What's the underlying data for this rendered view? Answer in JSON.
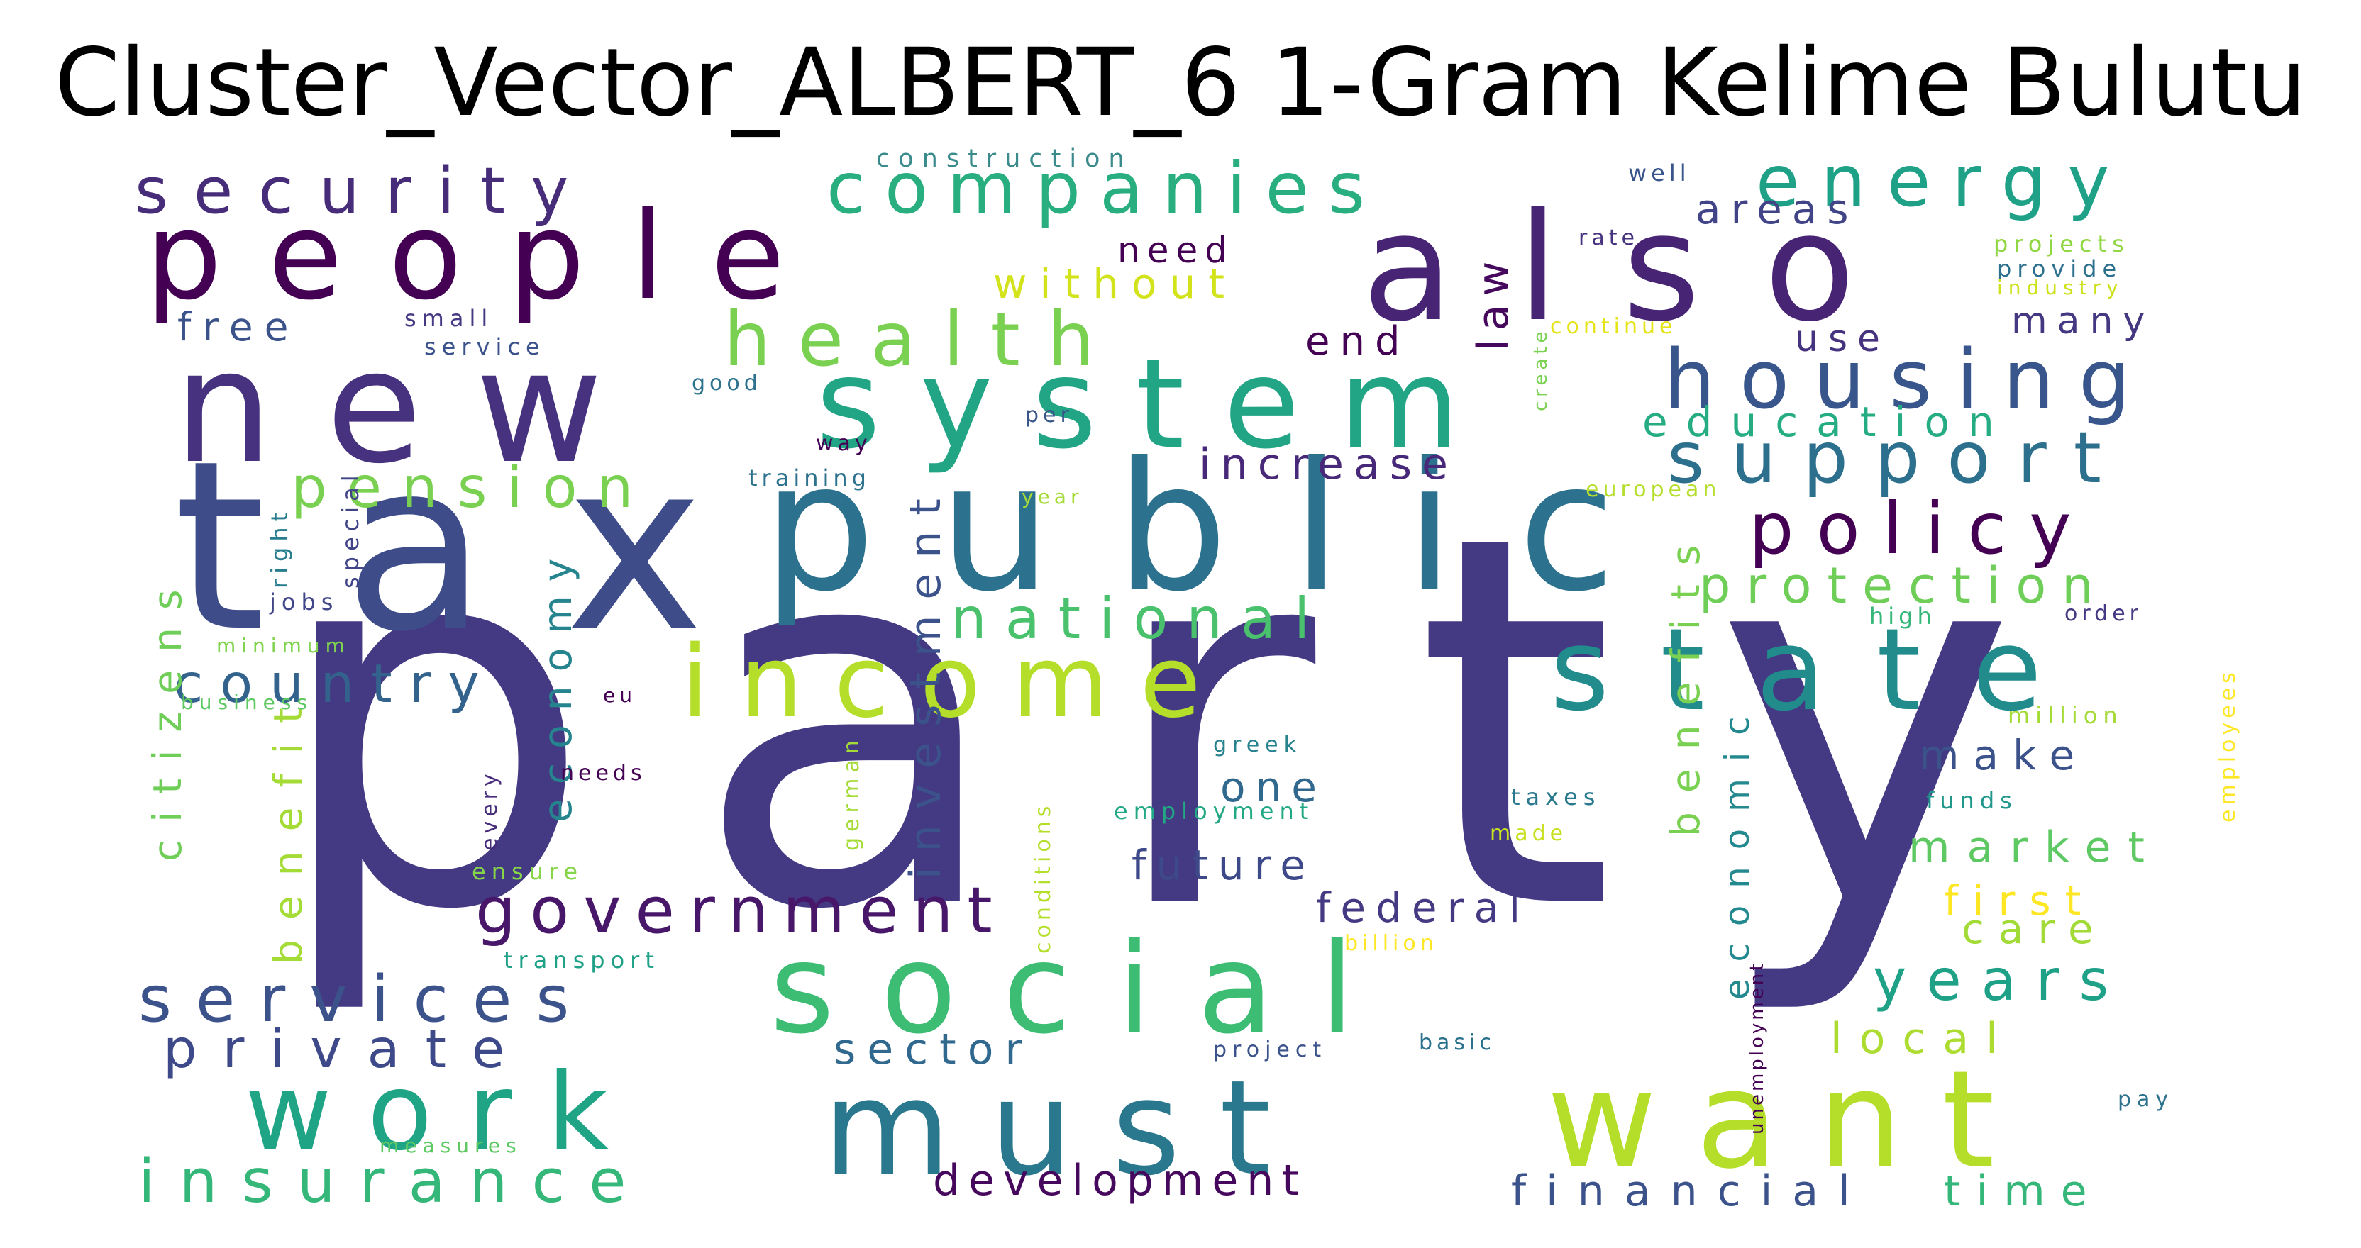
{
  "title": "Cluster_Vector_ALBERT_6 1-Gram Kelime Bulutu",
  "words": [
    {
      "text": "party",
      "color": "#443983"
    },
    {
      "text": "tax",
      "color": "#3e4c8a"
    },
    {
      "text": "public",
      "color": "#2c728e"
    },
    {
      "text": "new",
      "color": "#46327e"
    },
    {
      "text": "people",
      "color": "#440154"
    },
    {
      "text": "also",
      "color": "#482475"
    },
    {
      "text": "system",
      "color": "#21a585"
    },
    {
      "text": "social",
      "color": "#3dbc74"
    },
    {
      "text": "state",
      "color": "#228c8d"
    },
    {
      "text": "income",
      "color": "#b5de2b"
    },
    {
      "text": "want",
      "color": "#b5de2b"
    },
    {
      "text": "must",
      "color": "#2a788e"
    },
    {
      "text": "work",
      "color": "#20a486"
    },
    {
      "text": "housing",
      "color": "#39568c"
    },
    {
      "text": "health",
      "color": "#7ad151"
    },
    {
      "text": "companies",
      "color": "#29af7f"
    },
    {
      "text": "security",
      "color": "#472c7a"
    },
    {
      "text": "energy",
      "color": "#1fa187"
    },
    {
      "text": "support",
      "color": "#2d708e"
    },
    {
      "text": "policy",
      "color": "#440154"
    },
    {
      "text": "government",
      "color": "#481769"
    },
    {
      "text": "services",
      "color": "#3b528b"
    },
    {
      "text": "insurance",
      "color": "#35b779"
    },
    {
      "text": "private",
      "color": "#3e4989"
    },
    {
      "text": "national",
      "color": "#4ac16d"
    },
    {
      "text": "country",
      "color": "#33638d"
    },
    {
      "text": "pension",
      "color": "#7ad151"
    },
    {
      "text": "investment",
      "color": "#3b528b"
    },
    {
      "text": "economy",
      "color": "#25848e"
    },
    {
      "text": "citizens",
      "color": "#6ece58"
    },
    {
      "text": "benefit",
      "color": "#a5db36"
    },
    {
      "text": "benefits",
      "color": "#7ad151"
    },
    {
      "text": "economic",
      "color": "#23898e"
    },
    {
      "text": "protection",
      "color": "#6ece58"
    },
    {
      "text": "education",
      "color": "#25ac82"
    },
    {
      "text": "development",
      "color": "#46085c"
    },
    {
      "text": "financial",
      "color": "#3b528b"
    },
    {
      "text": "time",
      "color": "#35b779"
    },
    {
      "text": "years",
      "color": "#1fa187"
    },
    {
      "text": "local",
      "color": "#addc30"
    },
    {
      "text": "market",
      "color": "#5ec962"
    },
    {
      "text": "first",
      "color": "#fde725"
    },
    {
      "text": "care",
      "color": "#a2da37"
    },
    {
      "text": "make",
      "color": "#3b528b"
    },
    {
      "text": "law",
      "color": "#46085c"
    },
    {
      "text": "increase",
      "color": "#482878"
    },
    {
      "text": "future",
      "color": "#3e4989"
    },
    {
      "text": "federal",
      "color": "#443983"
    },
    {
      "text": "one",
      "color": "#31688e"
    },
    {
      "text": "sector",
      "color": "#31688e"
    },
    {
      "text": "without",
      "color": "#d2e21b"
    },
    {
      "text": "need",
      "color": "#440154"
    },
    {
      "text": "end",
      "color": "#440154"
    },
    {
      "text": "areas",
      "color": "#414487"
    },
    {
      "text": "many",
      "color": "#453781"
    },
    {
      "text": "use",
      "color": "#46337f"
    },
    {
      "text": "free",
      "color": "#3b528b"
    },
    {
      "text": "construction",
      "color": "#3b8a8c"
    },
    {
      "text": "well",
      "color": "#39558c"
    },
    {
      "text": "rate",
      "color": "#46327e"
    },
    {
      "text": "projects",
      "color": "#90d743"
    },
    {
      "text": "provide",
      "color": "#2d708e"
    },
    {
      "text": "industry",
      "color": "#cde11d"
    },
    {
      "text": "create",
      "color": "#7ad151"
    },
    {
      "text": "continue",
      "color": "#e5e419"
    },
    {
      "text": "small",
      "color": "#443983"
    },
    {
      "text": "service",
      "color": "#3b528b"
    },
    {
      "text": "good",
      "color": "#2c728e"
    },
    {
      "text": "per",
      "color": "#39568c"
    },
    {
      "text": "way",
      "color": "#440154"
    },
    {
      "text": "training",
      "color": "#2c728e"
    },
    {
      "text": "year",
      "color": "#a5db36"
    },
    {
      "text": "european",
      "color": "#b5de2b"
    },
    {
      "text": "right",
      "color": "#287d8e"
    },
    {
      "text": "special",
      "color": "#414487"
    },
    {
      "text": "jobs",
      "color": "#404688"
    },
    {
      "text": "minimum",
      "color": "#7fd34e"
    },
    {
      "text": "business",
      "color": "#5ec962"
    },
    {
      "text": "eu",
      "color": "#440154"
    },
    {
      "text": "every",
      "color": "#472d7b"
    },
    {
      "text": "needs",
      "color": "#440154"
    },
    {
      "text": "german",
      "color": "#a5db36"
    },
    {
      "text": "conditions",
      "color": "#b5de2b"
    },
    {
      "text": "greek",
      "color": "#26828e"
    },
    {
      "text": "employment",
      "color": "#22a884"
    },
    {
      "text": "ensure",
      "color": "#86d549"
    },
    {
      "text": "taxes",
      "color": "#2a788e"
    },
    {
      "text": "made",
      "color": "#c8e020"
    },
    {
      "text": "funds",
      "color": "#1f988b"
    },
    {
      "text": "million",
      "color": "#a5db36"
    },
    {
      "text": "high",
      "color": "#35b779"
    },
    {
      "text": "order",
      "color": "#443983"
    },
    {
      "text": "employees",
      "color": "#fde725"
    },
    {
      "text": "unemployment",
      "color": "#440154"
    },
    {
      "text": "transport",
      "color": "#1fa187"
    },
    {
      "text": "billion",
      "color": "#fde725"
    },
    {
      "text": "project",
      "color": "#3b528b"
    },
    {
      "text": "basic",
      "color": "#2c728e"
    },
    {
      "text": "measures",
      "color": "#5ec962"
    },
    {
      "text": "pay",
      "color": "#2c728e"
    }
  ]
}
